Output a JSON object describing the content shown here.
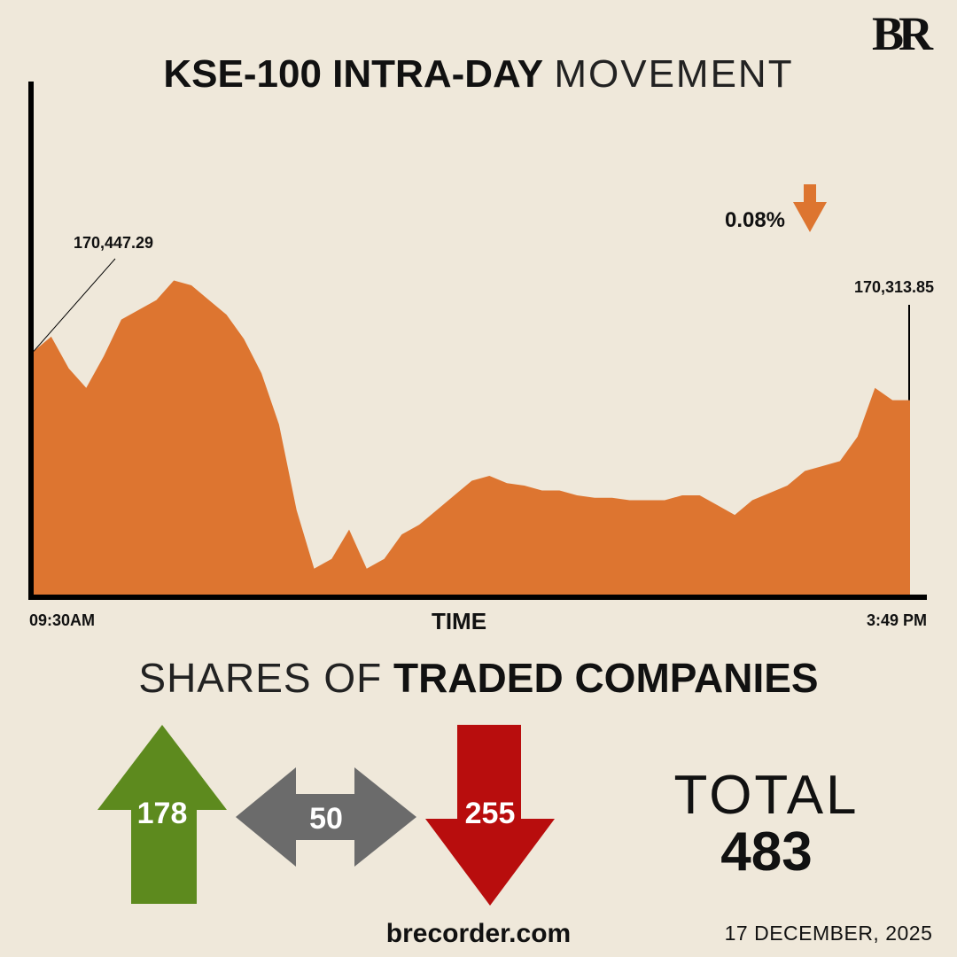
{
  "brand": {
    "logo_text": "BR"
  },
  "title": {
    "bold": "KSE-100 INTRA-DAY",
    "light": "MOVEMENT"
  },
  "chart_data": {
    "type": "area",
    "title": "KSE-100 INTRA-DAY MOVEMENT",
    "xlabel": "TIME",
    "x_start_label": "09:30AM",
    "x_end_label": "3:49 PM",
    "open_value_label": "170,447.29",
    "close_value_label": "170,313.85",
    "change_label": "0.08%",
    "change_direction": "down",
    "color": "#dd7530",
    "series": [
      {
        "name": "KSE-100",
        "values": [
          170450,
          170510,
          170380,
          170300,
          170430,
          170580,
          170620,
          170660,
          170740,
          170720,
          170660,
          170600,
          170500,
          170360,
          170150,
          169800,
          169560,
          169600,
          169720,
          169560,
          169600,
          169700,
          169740,
          169800,
          169860,
          169920,
          169940,
          169910,
          169900,
          169880,
          169880,
          169860,
          169850,
          169850,
          169840,
          169840,
          169840,
          169860,
          169860,
          169820,
          169780,
          169840,
          169870,
          169900,
          169960,
          169980,
          170000,
          170100,
          170300,
          170250,
          170250
        ]
      }
    ]
  },
  "shares": {
    "heading_light": "SHARES OF",
    "heading_bold": "TRADED COMPANIES",
    "up": 178,
    "unchanged": 50,
    "down": 255,
    "total_label": "TOTAL",
    "total": 483
  },
  "colors": {
    "up": "#5d8a1e",
    "unchanged": "#6b6b6b",
    "down": "#b80d0d",
    "area": "#dd7530",
    "bg": "#efe8da"
  },
  "footer": {
    "site": "brecorder.com",
    "date": "17 DECEMBER, 2025"
  }
}
